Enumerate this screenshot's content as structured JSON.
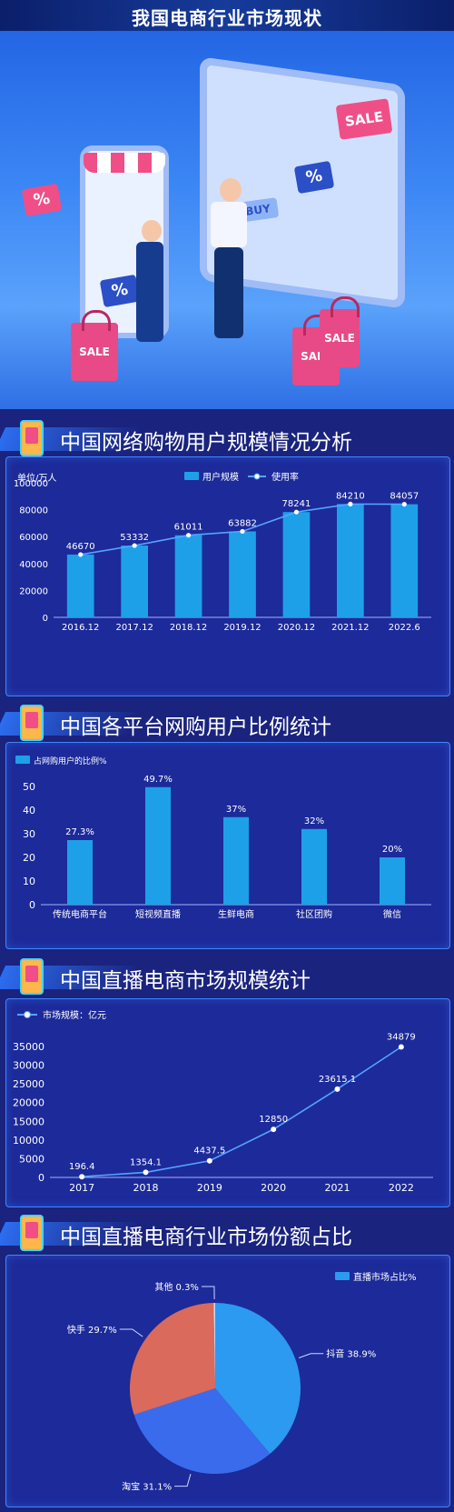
{
  "page": {
    "title": "我国电商行业市场现状"
  },
  "hero": {
    "sale_a": "SALE",
    "sale_b": "SALE",
    "sale_c": "SALE",
    "sale_d": "SALE",
    "pct_a": "%",
    "pct_b": "%",
    "pct_c": "%",
    "buy": "BUY"
  },
  "colors": {
    "bar": "#1ea0e8",
    "line": "#56a3ff",
    "panel": "#1c2a9a",
    "border": "#3f86ff"
  },
  "sections": [
    {
      "title": "中国网络购物用户规模情况分析"
    },
    {
      "title": "中国各平台网购用户比例统计"
    },
    {
      "title": "中国直播电商市场规模统计"
    },
    {
      "title": "中国直播电商行业市场份额占比"
    }
  ],
  "chart_data": [
    {
      "type": "bar",
      "unit_label": "单位/万人",
      "categories": [
        "2016.12",
        "2017.12",
        "2018.12",
        "2019.12",
        "2020.12",
        "2021.12",
        "2022.6"
      ],
      "series": [
        {
          "name": "用户规模",
          "type": "bar",
          "values": [
            46670,
            53332,
            61011,
            63882,
            78241,
            84210,
            84057
          ]
        },
        {
          "name": "使用率",
          "type": "line",
          "values": [
            46670,
            53332,
            61011,
            63882,
            78241,
            84210,
            84057
          ]
        }
      ],
      "value_labels": [
        "46670",
        "53332",
        "61011",
        "63882",
        "78241",
        "84210",
        "84057"
      ],
      "yticks": [
        "0",
        "20000",
        "40000",
        "60000",
        "80000",
        "100000"
      ],
      "ylim": [
        0,
        100000
      ],
      "legend": "top-center"
    },
    {
      "type": "bar",
      "categories": [
        "传统电商平台",
        "短视频直播",
        "生鲜电商",
        "社区团购",
        "微信"
      ],
      "series": [
        {
          "name": "占网购用户的比例%",
          "values": [
            27.3,
            49.7,
            37,
            32,
            20
          ]
        }
      ],
      "value_labels": [
        "27.3%",
        "49.7%",
        "37%",
        "32%",
        "20%"
      ],
      "yticks": [
        "0",
        "10",
        "20",
        "30",
        "40",
        "50"
      ],
      "ylim": [
        0,
        50
      ],
      "legend": "top-left"
    },
    {
      "type": "line",
      "categories": [
        "2017",
        "2018",
        "2019",
        "2020",
        "2021",
        "2022"
      ],
      "series": [
        {
          "name": "市场规模：亿元",
          "values": [
            196.4,
            1354.1,
            4437.5,
            12850,
            23615.1,
            34879
          ]
        }
      ],
      "value_labels": [
        "196.4",
        "1354.1",
        "4437.5",
        "12850",
        "23615.1",
        "34879"
      ],
      "yticks": [
        "0",
        "5000",
        "10000",
        "15000",
        "20000",
        "25000",
        "30000",
        "35000"
      ],
      "ylim": [
        0,
        35000
      ],
      "legend": "top-left"
    },
    {
      "type": "pie",
      "legend_label": "直播市场占比%",
      "slices": [
        {
          "name": "抖音",
          "value": 38.9,
          "label": "抖音 38.9%",
          "color": "#2b9af0"
        },
        {
          "name": "淘宝",
          "value": 31.1,
          "label": "淘宝 31.1%",
          "color": "#3a6bec"
        },
        {
          "name": "快手",
          "value": 29.7,
          "label": "快手 29.7%",
          "color": "#d96a5c"
        },
        {
          "name": "其他",
          "value": 0.3,
          "label": "其他 0.3%",
          "color": "#c8d6f5"
        }
      ],
      "legend": "top-right"
    }
  ]
}
